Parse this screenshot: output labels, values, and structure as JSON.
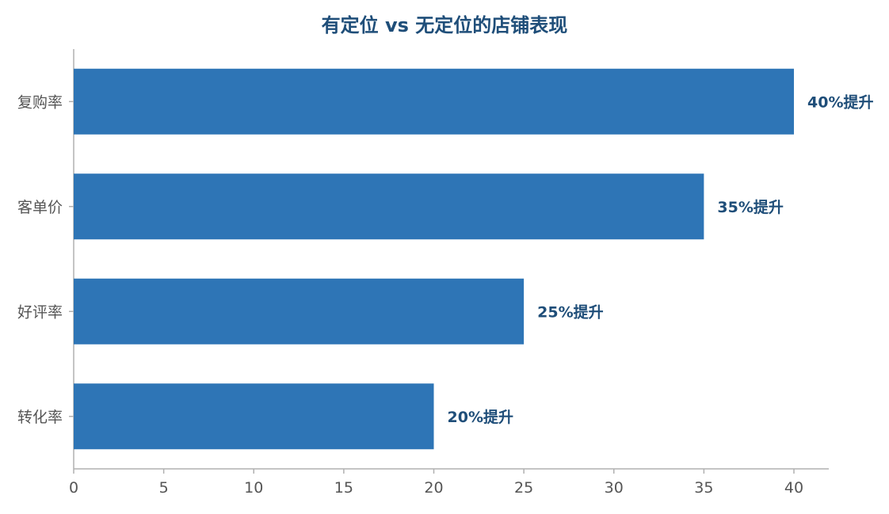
{
  "chart_data": {
    "type": "bar",
    "orientation": "horizontal",
    "title": "有定位 vs 无定位的店铺表现",
    "xlabel": "",
    "ylabel": "",
    "categories": [
      "复购率",
      "客单价",
      "好评率",
      "转化率"
    ],
    "values": [
      40,
      35,
      25,
      20
    ],
    "data_labels": [
      "40%提升",
      "35%提升",
      "25%提升",
      "20%提升"
    ],
    "xlim": [
      0,
      42
    ],
    "xticks": [
      0,
      5,
      10,
      15,
      20,
      25,
      30,
      35,
      40
    ],
    "grid": false,
    "legend": "none",
    "bar_color": "#2e75b6",
    "label_color": "#1f4e79",
    "axis_color": "#b0b0b0"
  }
}
